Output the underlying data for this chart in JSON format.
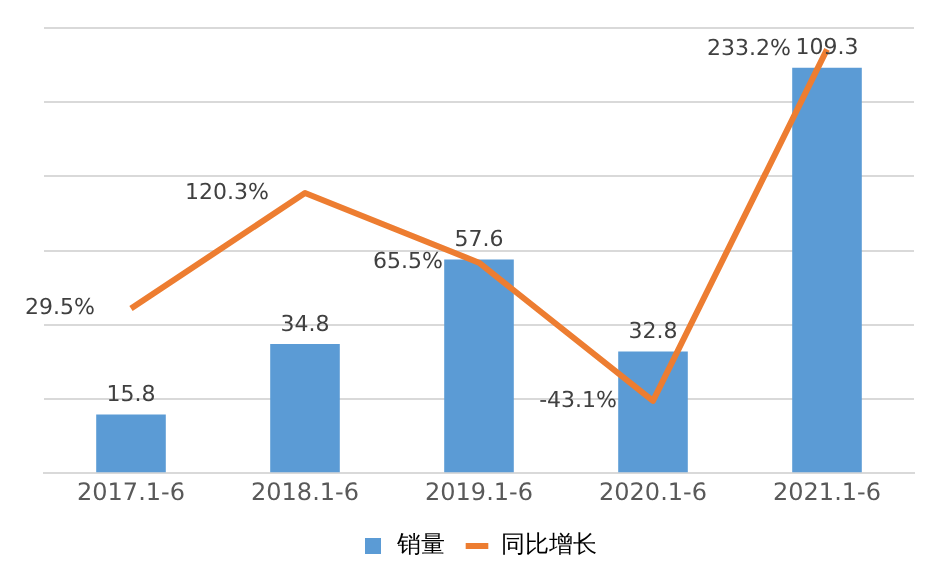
{
  "chart_data": {
    "type": "bar",
    "categories": [
      "2017.1-6",
      "2018.1-6",
      "2019.1-6",
      "2020.1-6",
      "2021.1-6"
    ],
    "series": [
      {
        "name": "销量",
        "color": "#5b9bd5",
        "values": [
          15.8,
          34.8,
          57.6,
          32.8,
          109.3
        ]
      },
      {
        "name": "同比增长",
        "type": "line",
        "axis": "y2",
        "color": "#ed7d31",
        "values": [
          29.5,
          120.3,
          65.5,
          -43.1,
          233.2
        ],
        "value_labels": [
          "29.5%",
          "120.3%",
          "65.5%",
          "-43.1%",
          "233.2%"
        ]
      }
    ],
    "ylim": [
      0,
      120
    ],
    "yticks": [
      {
        "value": 0,
        "label": null
      },
      {
        "value": 20,
        "label": null
      },
      {
        "value": 40,
        "label": null
      },
      {
        "value": 60,
        "label": null
      },
      {
        "value": 80,
        "label": null
      },
      {
        "value": 100,
        "label": null
      },
      {
        "value": 120,
        "label": null
      }
    ],
    "y2lim": [
      -100,
      250
    ],
    "data_labels": true,
    "grid": "y",
    "legend": "bottom",
    "tick_labels": "x",
    "marker": "none"
  }
}
